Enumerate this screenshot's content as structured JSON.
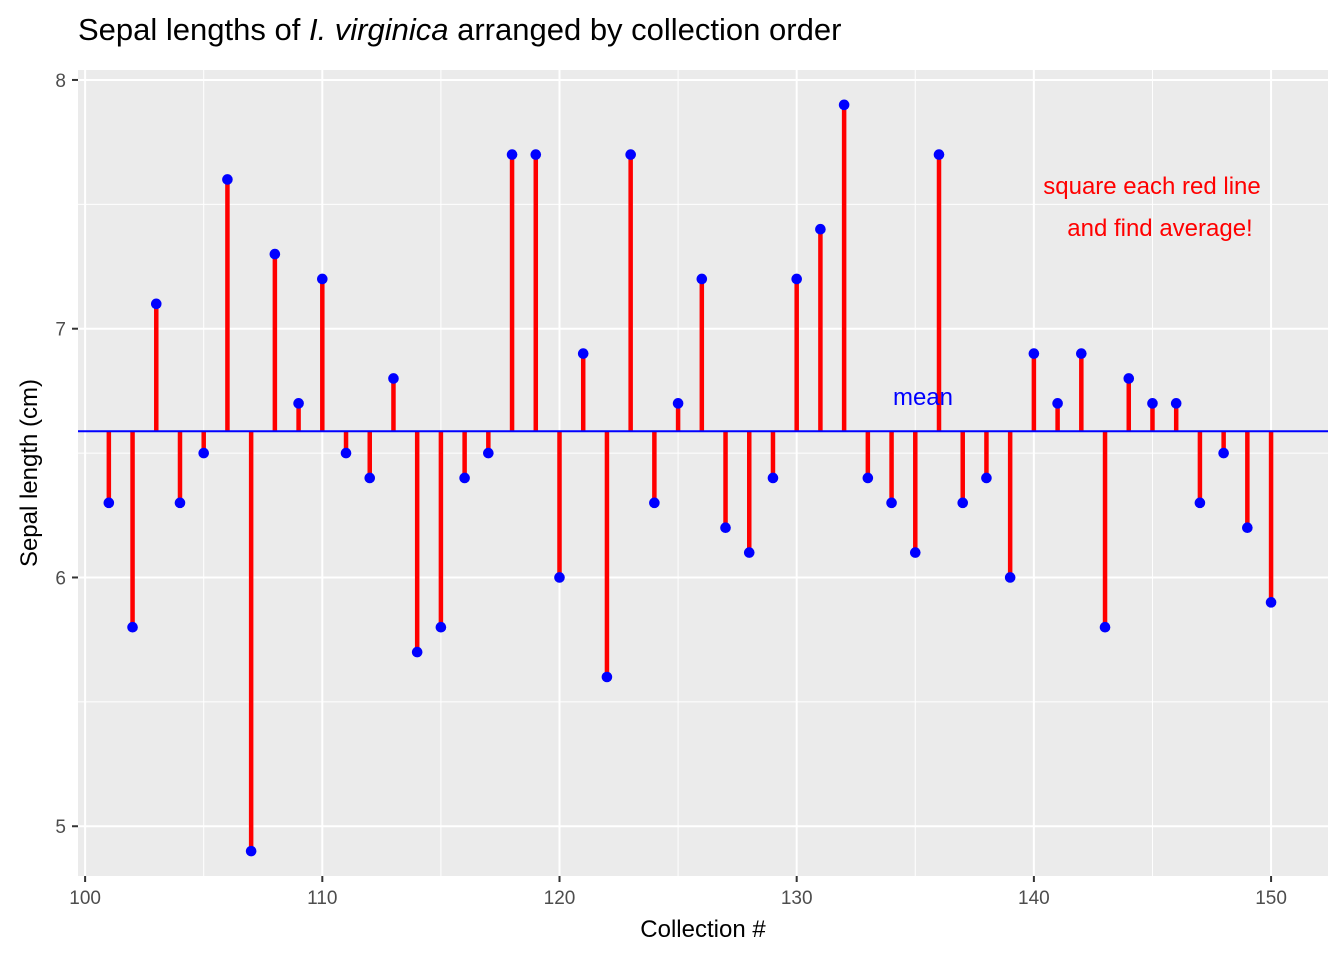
{
  "chart_data": {
    "type": "scatter",
    "title_parts": [
      "Sepal lengths of ",
      "I. virginica",
      " arranged by collection order"
    ],
    "xlabel": "Collection #",
    "ylabel": "Sepal length (cm)",
    "xlim": [
      99.7,
      152.4
    ],
    "ylim": [
      4.8,
      8.04
    ],
    "x_ticks": [
      100,
      110,
      120,
      130,
      140,
      150
    ],
    "y_ticks": [
      5,
      6,
      7,
      8
    ],
    "grid": true,
    "mean": 6.588,
    "mean_label": "mean",
    "annotation_lines": [
      "square each red line",
      "and find average!"
    ],
    "colors": {
      "panel": "#ebebeb",
      "grid": "#ffffff",
      "points": "#0000ff",
      "segments": "#ff0000",
      "mean_line": "#0000ff",
      "annotation": "#ff0000"
    },
    "x": [
      101,
      102,
      103,
      104,
      105,
      106,
      107,
      108,
      109,
      110,
      111,
      112,
      113,
      114,
      115,
      116,
      117,
      118,
      119,
      120,
      121,
      122,
      123,
      124,
      125,
      126,
      127,
      128,
      129,
      130,
      131,
      132,
      133,
      134,
      135,
      136,
      137,
      138,
      139,
      140,
      141,
      142,
      143,
      144,
      145,
      146,
      147,
      148,
      149,
      150
    ],
    "y": [
      6.3,
      5.8,
      7.1,
      6.3,
      6.5,
      7.6,
      4.9,
      7.3,
      6.7,
      7.2,
      6.5,
      6.4,
      6.8,
      5.7,
      5.8,
      6.4,
      6.5,
      7.7,
      7.7,
      6.0,
      6.9,
      5.6,
      7.7,
      6.3,
      6.7,
      7.2,
      6.2,
      6.1,
      6.4,
      7.2,
      7.4,
      7.9,
      6.4,
      6.3,
      6.1,
      7.7,
      6.3,
      6.4,
      6.0,
      6.9,
      6.7,
      6.9,
      5.8,
      6.8,
      6.7,
      6.7,
      6.3,
      6.5,
      6.2,
      5.9
    ]
  }
}
